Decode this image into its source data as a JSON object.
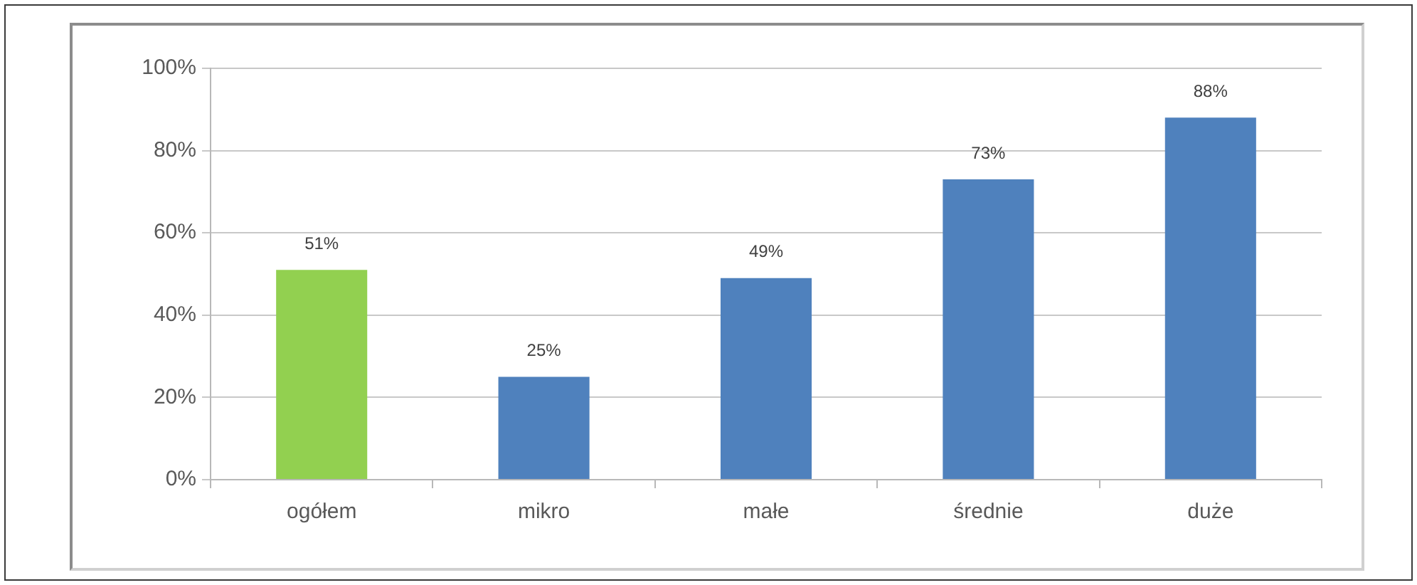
{
  "chart_data": {
    "type": "bar",
    "categories": [
      "ogółem",
      "mikro",
      "małe",
      "średnie",
      "duże"
    ],
    "values": [
      51,
      25,
      49,
      73,
      88
    ],
    "colors": [
      "#92d050",
      "#4f81bd",
      "#4f81bd",
      "#4f81bd",
      "#4f81bd"
    ],
    "value_labels": [
      "51%",
      "25%",
      "49%",
      "73%",
      "88%"
    ],
    "ylim": [
      0,
      100
    ],
    "yticks": [
      {
        "value": 0,
        "label": "0%"
      },
      {
        "value": 20,
        "label": "20%"
      },
      {
        "value": 40,
        "label": "40%"
      },
      {
        "value": 60,
        "label": "60%"
      },
      {
        "value": 80,
        "label": "80%"
      },
      {
        "value": 100,
        "label": "100%"
      }
    ],
    "grid": "y",
    "legend": false
  }
}
